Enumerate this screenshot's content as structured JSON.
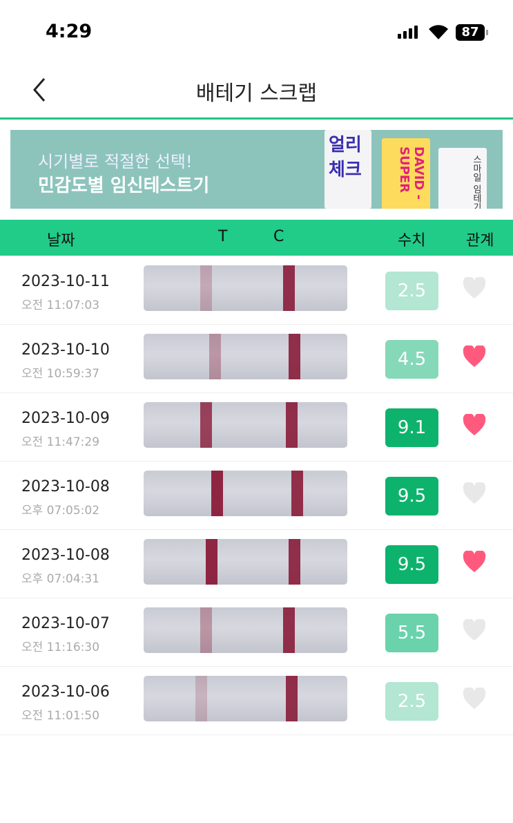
{
  "status": {
    "time": "4:29",
    "battery": "87"
  },
  "nav": {
    "title": "배테기 스크랩"
  },
  "banner": {
    "line1": "시기별로 적절한 선택!",
    "line2": "민감도별 임신테스트기",
    "products": [
      "얼리 체크",
      "DAVID -SUPER",
      "스마일 임테기"
    ]
  },
  "header": {
    "date": "날짜",
    "t": "T",
    "c": "C",
    "score": "수치",
    "relation": "관계"
  },
  "colors": {
    "accent": "#21cb88",
    "heart_on": "#ff5a7e",
    "heart_off": "#e8e8e8"
  },
  "rows": [
    {
      "date": "2023-10-11",
      "time": "오전 11:07:03",
      "score": "2.5",
      "score_color": "#b3e6d3",
      "liked": false,
      "t_line_strength": 0.25
    },
    {
      "date": "2023-10-10",
      "time": "오전 10:59:37",
      "score": "4.5",
      "score_color": "#86d9b8",
      "liked": true,
      "t_line_strength": 0.35
    },
    {
      "date": "2023-10-09",
      "time": "오전 11:47:29",
      "score": "9.1",
      "score_color": "#0db36c",
      "liked": true,
      "t_line_strength": 0.8
    },
    {
      "date": "2023-10-08",
      "time": "오후 07:05:02",
      "score": "9.5",
      "score_color": "#0db36c",
      "liked": false,
      "t_line_strength": 0.95
    },
    {
      "date": "2023-10-08",
      "time": "오후 07:04:31",
      "score": "9.5",
      "score_color": "#0db36c",
      "liked": true,
      "t_line_strength": 0.95
    },
    {
      "date": "2023-10-07",
      "time": "오전 11:16:30",
      "score": "5.5",
      "score_color": "#6ad3ab",
      "liked": false,
      "t_line_strength": 0.35
    },
    {
      "date": "2023-10-06",
      "time": "오전 11:01:50",
      "score": "2.5",
      "score_color": "#b3e6d3",
      "liked": false,
      "t_line_strength": 0.2
    }
  ]
}
